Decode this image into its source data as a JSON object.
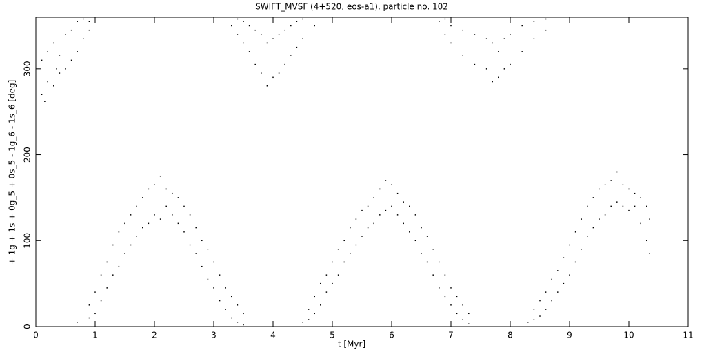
{
  "chart_data": {
    "type": "scatter",
    "title": "SWIFT_MVSF (4+520, eos-a1), particle no. 102",
    "xlabel": "t [Myr]",
    "ylabel": "+ 1g + 1s + 0g_5 + 0s_5 - 1g_6 - 1s_6 [deg]",
    "xlim": [
      0,
      11
    ],
    "ylim": [
      0,
      360
    ],
    "xticks": [
      0,
      1,
      2,
      3,
      4,
      5,
      6,
      7,
      8,
      9,
      10,
      11
    ],
    "yticks": [
      0,
      100,
      200,
      300
    ],
    "color": "#000000",
    "x": [
      0.1,
      0.1,
      0.15,
      0.2,
      0.2,
      0.3,
      0.3,
      0.35,
      0.4,
      0.4,
      0.5,
      0.5,
      0.6,
      0.6,
      0.7,
      0.7,
      0.8,
      0.8,
      0.9,
      0.9,
      0.7,
      0.9,
      0.9,
      1.0,
      1.0,
      1.1,
      1.1,
      1.2,
      1.2,
      1.3,
      1.3,
      1.4,
      1.4,
      1.5,
      1.5,
      1.6,
      1.6,
      1.7,
      1.7,
      1.8,
      1.8,
      1.9,
      1.9,
      2.0,
      2.0,
      2.1,
      2.1,
      2.2,
      2.2,
      2.3,
      2.3,
      2.4,
      2.4,
      2.5,
      2.5,
      2.6,
      2.6,
      2.7,
      2.7,
      2.8,
      2.8,
      2.9,
      2.9,
      3.0,
      3.0,
      3.1,
      3.1,
      3.2,
      3.2,
      3.3,
      3.3,
      3.4,
      3.4,
      3.5,
      3.5,
      3.3,
      3.4,
      3.4,
      3.5,
      3.5,
      3.6,
      3.6,
      3.7,
      3.7,
      3.8,
      3.8,
      3.9,
      3.9,
      4.0,
      4.0,
      4.1,
      4.1,
      4.2,
      4.2,
      4.3,
      4.3,
      4.4,
      4.4,
      4.5,
      4.5,
      4.7,
      4.5,
      4.6,
      4.6,
      4.7,
      4.7,
      4.8,
      4.8,
      4.9,
      4.9,
      5.0,
      5.0,
      5.1,
      5.1,
      5.2,
      5.2,
      5.3,
      5.3,
      5.4,
      5.4,
      5.5,
      5.5,
      5.6,
      5.6,
      5.7,
      5.7,
      5.8,
      5.8,
      5.9,
      5.9,
      6.0,
      6.0,
      6.1,
      6.1,
      6.2,
      6.2,
      6.3,
      6.3,
      6.4,
      6.4,
      6.5,
      6.5,
      6.6,
      6.6,
      6.7,
      6.7,
      6.8,
      6.8,
      6.9,
      6.9,
      7.0,
      7.0,
      7.1,
      7.1,
      7.2,
      7.2,
      7.3,
      7.3,
      6.8,
      6.9,
      6.9,
      7.0,
      7.0,
      7.2,
      7.2,
      7.4,
      7.4,
      7.6,
      7.6,
      7.7,
      7.7,
      7.8,
      7.8,
      7.9,
      7.9,
      8.0,
      8.0,
      8.2,
      8.2,
      8.4,
      8.4,
      8.6,
      8.6,
      8.3,
      8.4,
      8.4,
      8.5,
      8.5,
      8.6,
      8.6,
      8.7,
      8.7,
      8.8,
      8.8,
      8.9,
      8.9,
      9.0,
      9.0,
      9.1,
      9.1,
      9.2,
      9.2,
      9.3,
      9.3,
      9.4,
      9.4,
      9.5,
      9.5,
      9.6,
      9.6,
      9.7,
      9.7,
      9.8,
      9.8,
      9.9,
      9.9,
      10.0,
      10.0,
      10.1,
      10.1,
      10.2,
      10.2,
      10.3,
      10.3,
      10.35,
      10.35
    ],
    "values": [
      270,
      310,
      262,
      285,
      320,
      280,
      330,
      300,
      295,
      315,
      300,
      340,
      310,
      345,
      320,
      355,
      335,
      358,
      345,
      355,
      5,
      10,
      25,
      15,
      40,
      30,
      60,
      45,
      75,
      60,
      95,
      70,
      110,
      85,
      120,
      95,
      130,
      105,
      140,
      115,
      150,
      120,
      160,
      130,
      165,
      125,
      175,
      140,
      160,
      130,
      155,
      120,
      150,
      110,
      140,
      95,
      130,
      85,
      115,
      70,
      100,
      55,
      90,
      45,
      75,
      30,
      60,
      20,
      45,
      10,
      35,
      5,
      25,
      2,
      15,
      350,
      340,
      358,
      330,
      355,
      320,
      350,
      305,
      345,
      295,
      340,
      280,
      330,
      290,
      335,
      295,
      340,
      305,
      345,
      315,
      350,
      325,
      355,
      335,
      358,
      350,
      5,
      8,
      20,
      15,
      35,
      25,
      50,
      40,
      60,
      50,
      75,
      60,
      90,
      75,
      100,
      85,
      115,
      95,
      125,
      105,
      135,
      115,
      140,
      120,
      150,
      130,
      160,
      135,
      170,
      140,
      165,
      130,
      155,
      120,
      145,
      110,
      140,
      100,
      130,
      85,
      115,
      75,
      105,
      60,
      90,
      45,
      75,
      35,
      60,
      25,
      45,
      15,
      35,
      8,
      25,
      3,
      15,
      355,
      340,
      358,
      330,
      350,
      315,
      345,
      305,
      340,
      300,
      335,
      285,
      330,
      290,
      320,
      300,
      335,
      305,
      340,
      320,
      350,
      335,
      355,
      345,
      358,
      5,
      8,
      20,
      12,
      30,
      20,
      40,
      30,
      55,
      40,
      65,
      50,
      80,
      60,
      95,
      75,
      110,
      90,
      125,
      105,
      140,
      115,
      150,
      125,
      160,
      130,
      165,
      140,
      170,
      145,
      180,
      140,
      165,
      135,
      160,
      140,
      155,
      120,
      150,
      100,
      140,
      85,
      125
    ]
  }
}
